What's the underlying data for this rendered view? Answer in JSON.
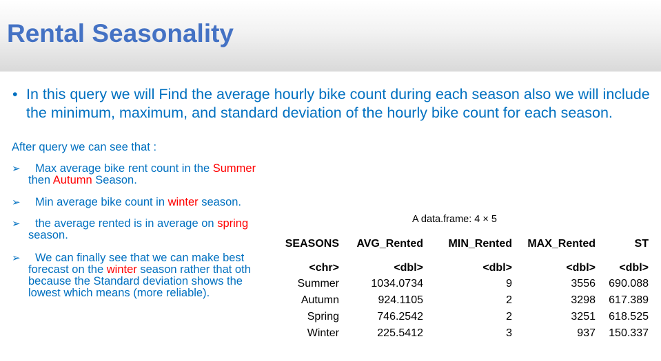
{
  "title": "Rental Seasonality",
  "intro": "In this query we will Find the average hourly bike count during each season also we will include the minimum, maximum, and standard deviation of the hourly bike count for each season.",
  "after_label": "After query we can see that :",
  "bullet_glyph": "•",
  "arrow_glyph": "➢",
  "points": [
    {
      "lead": "Max average bike rent count in the ",
      "r1": "Summer",
      "mid": " then ",
      "r2": "Autumn",
      "tail": " Season."
    },
    {
      "lead": "Min average bike count in ",
      "r1": "winter",
      "tail": " season."
    },
    {
      "lead": "the average rented is in average on ",
      "r1": "spring",
      "tail": " season."
    },
    {
      "lead": "We can finally see that  we can make best forecast on the ",
      "r1": "winter",
      "tail": " season rather that oth because the Standard deviation shows the lowest which means (more reliable)."
    }
  ],
  "table": {
    "caption": "A data.frame: 4 × 5",
    "columns": [
      "SEASONS",
      "AVG_Rented",
      "MIN_Rented",
      "MAX_Rented",
      "ST"
    ],
    "types": [
      "<chr>",
      "<dbl>",
      "<dbl>",
      "<dbl>",
      "<dbl>"
    ],
    "rows": [
      [
        "Summer",
        "1034.0734",
        "9",
        "3556",
        "690.088"
      ],
      [
        "Autumn",
        "924.1105",
        "2",
        "3298",
        "617.389"
      ],
      [
        "Spring",
        "746.2542",
        "2",
        "3251",
        "618.525"
      ],
      [
        "Winter",
        "225.5412",
        "3",
        "937",
        "150.337"
      ]
    ]
  },
  "colors": {
    "title": "#4472c4",
    "body_text": "#0070c0",
    "highlight": "#ff0000"
  }
}
